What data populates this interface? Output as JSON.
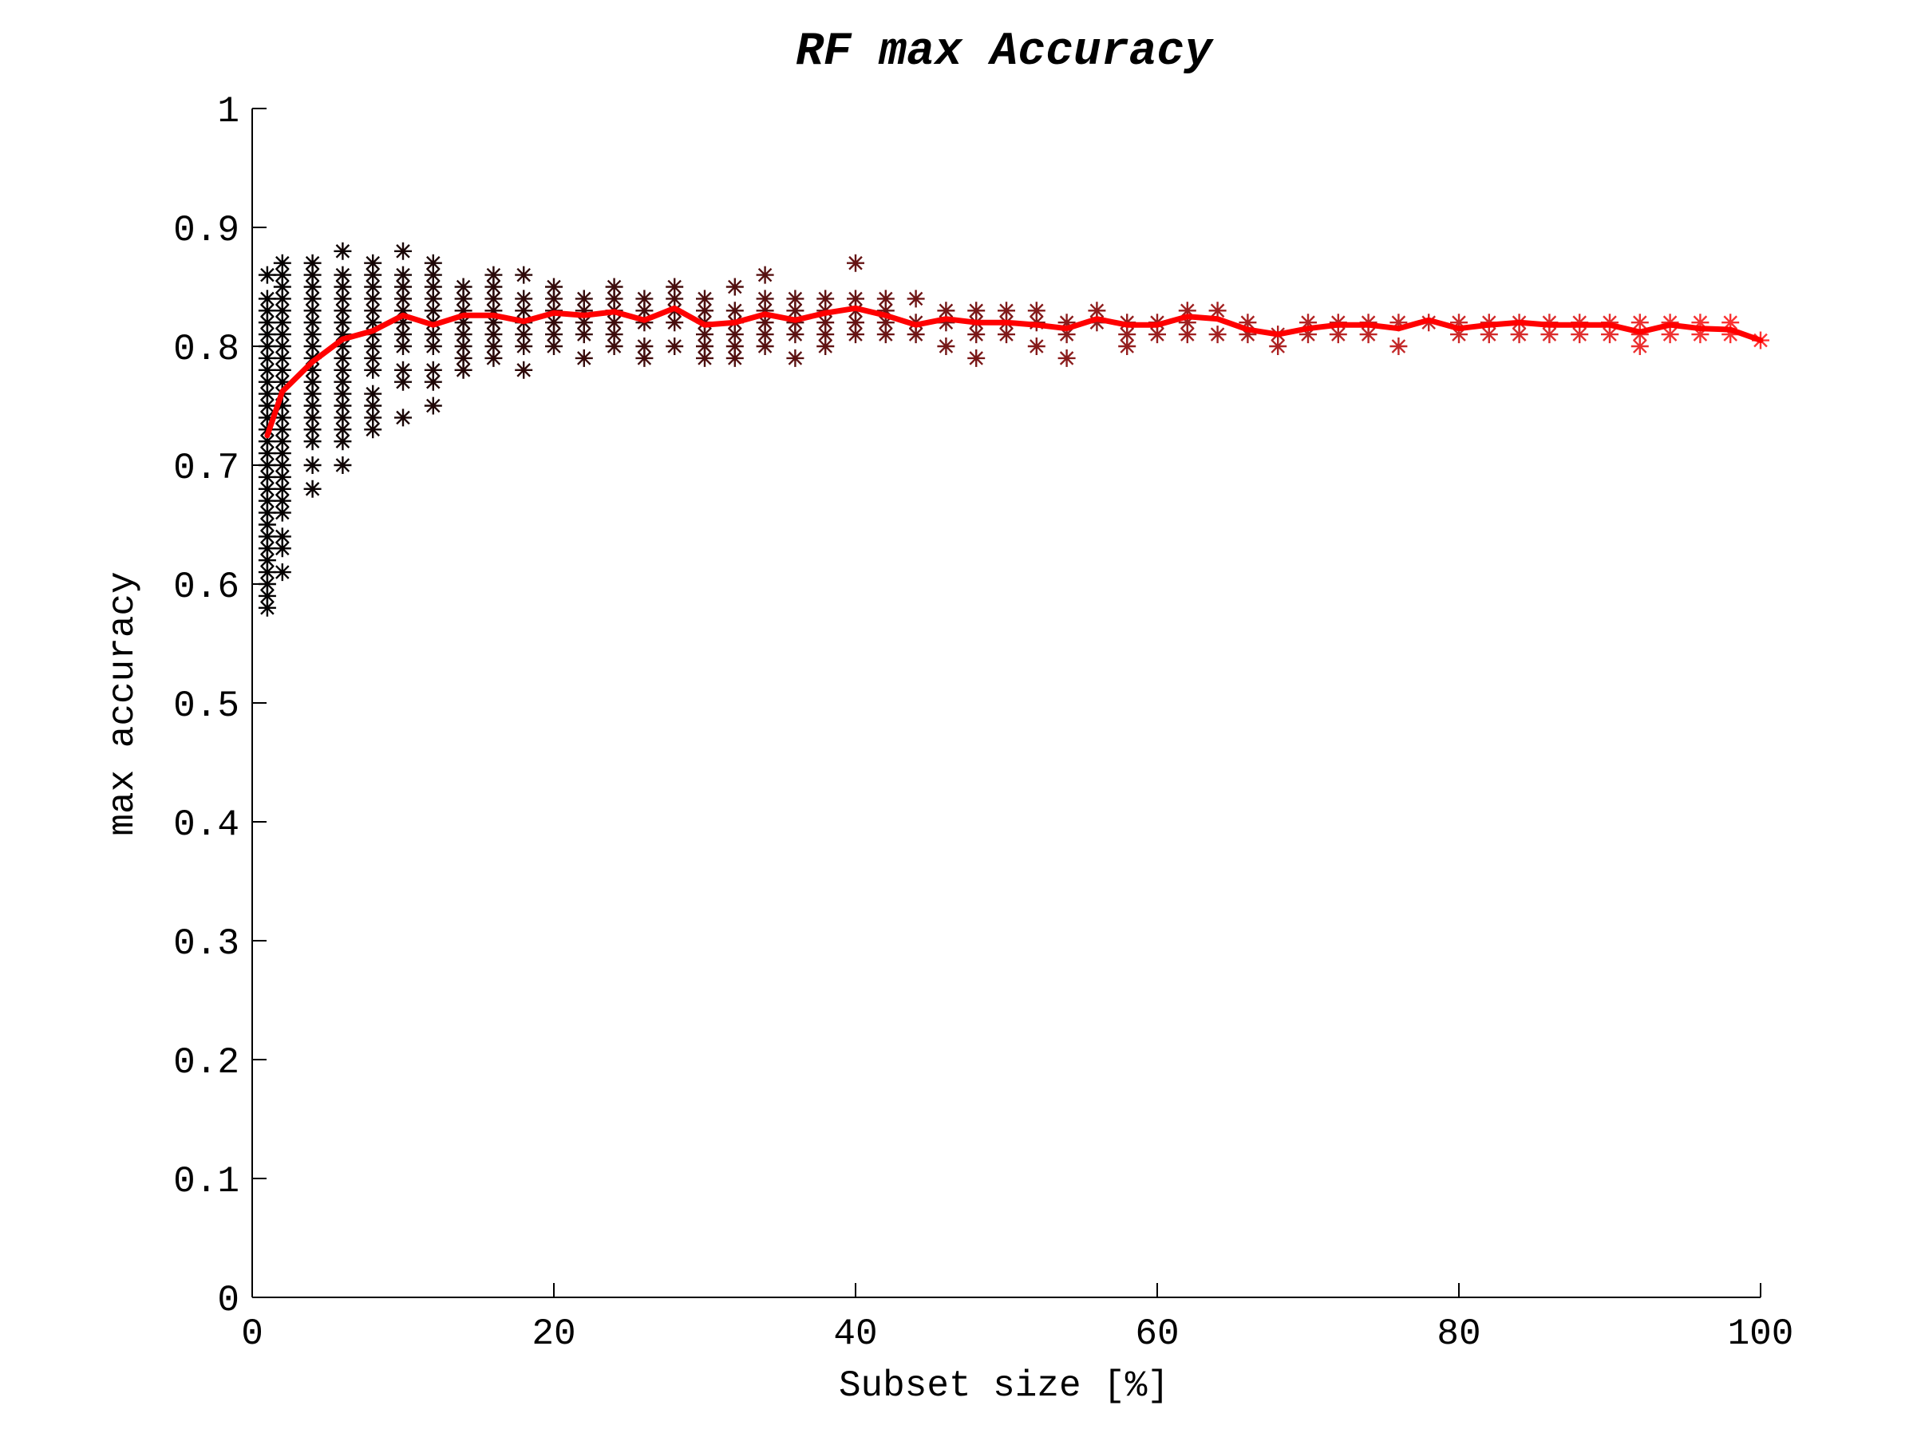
{
  "chart_data": {
    "type": "scatter",
    "title": "RF max Accuracy",
    "xlabel": "Subset size [%]",
    "ylabel": "max accuracy",
    "xlim": [
      0,
      100
    ],
    "ylim": [
      0,
      1
    ],
    "xticks": [
      0,
      20,
      40,
      60,
      80,
      100
    ],
    "xtick_labels": [
      "0",
      "20",
      "40",
      "60",
      "80",
      "100"
    ],
    "yticks": [
      0,
      0.1,
      0.2,
      0.3,
      0.4,
      0.5,
      0.6,
      0.7,
      0.8,
      0.9,
      1
    ],
    "ytick_labels": [
      "0",
      "0.1",
      "0.2",
      "0.3",
      "0.4",
      "0.5",
      "0.6",
      "0.7",
      "0.8",
      "0.9",
      "1"
    ],
    "grid": false,
    "legend": "none",
    "colors": {
      "mean_line": "#ff0000",
      "scatter_start": "#000000",
      "scatter_end": "#ff3333"
    },
    "scatter_groups": [
      {
        "x": 1,
        "y": [
          0.58,
          0.59,
          0.6,
          0.61,
          0.62,
          0.63,
          0.64,
          0.65,
          0.66,
          0.67,
          0.68,
          0.69,
          0.7,
          0.71,
          0.72,
          0.73,
          0.74,
          0.75,
          0.76,
          0.77,
          0.78,
          0.79,
          0.8,
          0.81,
          0.82,
          0.83,
          0.84,
          0.86
        ]
      },
      {
        "x": 2,
        "y": [
          0.61,
          0.63,
          0.64,
          0.66,
          0.67,
          0.68,
          0.69,
          0.7,
          0.71,
          0.72,
          0.73,
          0.74,
          0.75,
          0.76,
          0.77,
          0.78,
          0.79,
          0.8,
          0.81,
          0.82,
          0.83,
          0.84,
          0.85,
          0.86,
          0.87
        ]
      },
      {
        "x": 4,
        "y": [
          0.68,
          0.7,
          0.72,
          0.73,
          0.74,
          0.75,
          0.76,
          0.77,
          0.78,
          0.79,
          0.8,
          0.81,
          0.82,
          0.83,
          0.84,
          0.85,
          0.86,
          0.87
        ]
      },
      {
        "x": 6,
        "y": [
          0.7,
          0.72,
          0.73,
          0.74,
          0.75,
          0.76,
          0.77,
          0.78,
          0.79,
          0.8,
          0.81,
          0.82,
          0.83,
          0.84,
          0.85,
          0.86,
          0.88
        ]
      },
      {
        "x": 8,
        "y": [
          0.73,
          0.74,
          0.75,
          0.76,
          0.78,
          0.79,
          0.8,
          0.81,
          0.82,
          0.83,
          0.84,
          0.85,
          0.86,
          0.87
        ]
      },
      {
        "x": 10,
        "y": [
          0.74,
          0.77,
          0.78,
          0.8,
          0.81,
          0.82,
          0.83,
          0.84,
          0.85,
          0.86,
          0.88
        ]
      },
      {
        "x": 12,
        "y": [
          0.75,
          0.77,
          0.78,
          0.8,
          0.81,
          0.82,
          0.83,
          0.84,
          0.85,
          0.86,
          0.87
        ]
      },
      {
        "x": 14,
        "y": [
          0.78,
          0.79,
          0.8,
          0.81,
          0.82,
          0.83,
          0.84,
          0.85
        ]
      },
      {
        "x": 16,
        "y": [
          0.79,
          0.8,
          0.81,
          0.82,
          0.83,
          0.84,
          0.85,
          0.86
        ]
      },
      {
        "x": 18,
        "y": [
          0.78,
          0.8,
          0.81,
          0.82,
          0.83,
          0.84,
          0.86
        ]
      },
      {
        "x": 20,
        "y": [
          0.8,
          0.81,
          0.82,
          0.83,
          0.84,
          0.85
        ]
      },
      {
        "x": 22,
        "y": [
          0.79,
          0.81,
          0.82,
          0.83,
          0.84
        ]
      },
      {
        "x": 24,
        "y": [
          0.8,
          0.81,
          0.82,
          0.83,
          0.84,
          0.85
        ]
      },
      {
        "x": 26,
        "y": [
          0.79,
          0.8,
          0.82,
          0.83,
          0.84
        ]
      },
      {
        "x": 28,
        "y": [
          0.8,
          0.82,
          0.83,
          0.84,
          0.85
        ]
      },
      {
        "x": 30,
        "y": [
          0.79,
          0.8,
          0.81,
          0.82,
          0.83,
          0.84
        ]
      },
      {
        "x": 32,
        "y": [
          0.79,
          0.8,
          0.81,
          0.82,
          0.83,
          0.85
        ]
      },
      {
        "x": 34,
        "y": [
          0.8,
          0.81,
          0.82,
          0.83,
          0.84,
          0.86
        ]
      },
      {
        "x": 36,
        "y": [
          0.79,
          0.81,
          0.82,
          0.83,
          0.84
        ]
      },
      {
        "x": 38,
        "y": [
          0.8,
          0.81,
          0.82,
          0.83,
          0.84
        ]
      },
      {
        "x": 40,
        "y": [
          0.81,
          0.82,
          0.83,
          0.84,
          0.87
        ]
      },
      {
        "x": 42,
        "y": [
          0.81,
          0.82,
          0.83,
          0.84
        ]
      },
      {
        "x": 44,
        "y": [
          0.81,
          0.82,
          0.84
        ]
      },
      {
        "x": 46,
        "y": [
          0.8,
          0.82,
          0.83
        ]
      },
      {
        "x": 48,
        "y": [
          0.79,
          0.81,
          0.82,
          0.83
        ]
      },
      {
        "x": 50,
        "y": [
          0.81,
          0.82,
          0.83
        ]
      },
      {
        "x": 52,
        "y": [
          0.8,
          0.82,
          0.83
        ]
      },
      {
        "x": 54,
        "y": [
          0.79,
          0.81,
          0.82
        ]
      },
      {
        "x": 56,
        "y": [
          0.82,
          0.83
        ]
      },
      {
        "x": 58,
        "y": [
          0.8,
          0.81,
          0.82
        ]
      },
      {
        "x": 60,
        "y": [
          0.81,
          0.82
        ]
      },
      {
        "x": 62,
        "y": [
          0.81,
          0.82,
          0.83
        ]
      },
      {
        "x": 64,
        "y": [
          0.81,
          0.83
        ]
      },
      {
        "x": 66,
        "y": [
          0.81,
          0.82
        ]
      },
      {
        "x": 68,
        "y": [
          0.8,
          0.81
        ]
      },
      {
        "x": 70,
        "y": [
          0.81,
          0.82
        ]
      },
      {
        "x": 72,
        "y": [
          0.81,
          0.82
        ]
      },
      {
        "x": 74,
        "y": [
          0.81,
          0.82
        ]
      },
      {
        "x": 76,
        "y": [
          0.8,
          0.82
        ]
      },
      {
        "x": 78,
        "y": [
          0.82
        ]
      },
      {
        "x": 80,
        "y": [
          0.81,
          0.82
        ]
      },
      {
        "x": 82,
        "y": [
          0.81,
          0.82
        ]
      },
      {
        "x": 84,
        "y": [
          0.81,
          0.82
        ]
      },
      {
        "x": 86,
        "y": [
          0.81,
          0.82
        ]
      },
      {
        "x": 88,
        "y": [
          0.81,
          0.82
        ]
      },
      {
        "x": 90,
        "y": [
          0.81,
          0.82
        ]
      },
      {
        "x": 92,
        "y": [
          0.8,
          0.81,
          0.82
        ]
      },
      {
        "x": 94,
        "y": [
          0.81,
          0.82
        ]
      },
      {
        "x": 96,
        "y": [
          0.81,
          0.82
        ]
      },
      {
        "x": 98,
        "y": [
          0.81,
          0.82
        ]
      },
      {
        "x": 100,
        "y": [
          0.805
        ]
      }
    ],
    "mean_line": {
      "x": [
        1,
        2,
        4,
        6,
        8,
        10,
        12,
        14,
        16,
        18,
        20,
        22,
        24,
        26,
        28,
        30,
        32,
        34,
        36,
        38,
        40,
        42,
        44,
        46,
        48,
        50,
        52,
        54,
        56,
        58,
        60,
        62,
        64,
        66,
        68,
        70,
        72,
        74,
        76,
        78,
        80,
        82,
        84,
        86,
        88,
        90,
        92,
        94,
        96,
        98,
        100
      ],
      "y": [
        0.725,
        0.762,
        0.787,
        0.806,
        0.813,
        0.826,
        0.818,
        0.826,
        0.826,
        0.821,
        0.828,
        0.826,
        0.829,
        0.822,
        0.832,
        0.818,
        0.82,
        0.827,
        0.822,
        0.828,
        0.832,
        0.826,
        0.818,
        0.823,
        0.82,
        0.82,
        0.818,
        0.815,
        0.823,
        0.818,
        0.818,
        0.825,
        0.823,
        0.814,
        0.81,
        0.815,
        0.818,
        0.818,
        0.815,
        0.822,
        0.815,
        0.818,
        0.82,
        0.818,
        0.818,
        0.818,
        0.812,
        0.818,
        0.815,
        0.814,
        0.805
      ]
    }
  }
}
